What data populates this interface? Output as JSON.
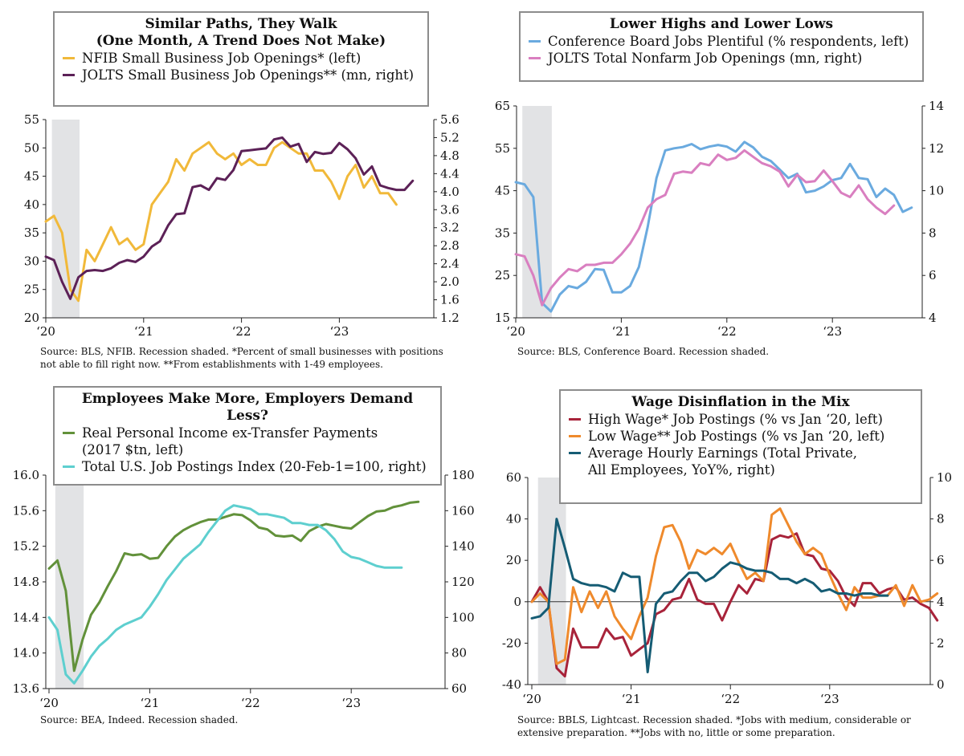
{
  "panels": [
    {
      "id": "p1",
      "title": "Similar Paths, They Walk\n(One Month, A Trend Does Not Make)",
      "legend": [
        {
          "label": "NFIB Small Business Job Openings* (left)",
          "color": "#f1b93a"
        },
        {
          "label": "JOLTS Small Business Job Openings** (mn, right)",
          "color": "#5c2157"
        }
      ],
      "source": "Source: BLS, NFIB. Recession shaded. *Percent of small businesses with positions\nnot able to fill right now. **From establishments with 1-49 employees.",
      "x_tick_labels": [
        "‘20",
        "‘21",
        "‘22",
        "‘23"
      ],
      "left_tick_labels": [
        "55",
        "50",
        "45",
        "40",
        "35",
        "30",
        "25",
        "20"
      ],
      "right_tick_labels": [
        "5.6",
        "5.2",
        "4.8",
        "4.4",
        "4.0",
        "3.6",
        "3.2",
        "2.8",
        "2.4",
        "2.0",
        "1.6",
        "1.2"
      ]
    },
    {
      "id": "p2",
      "title": "Lower Highs and Lower Lows",
      "legend": [
        {
          "label": "Conference Board Jobs Plentiful (% respondents, left)",
          "color": "#6aaadf"
        },
        {
          "label": "JOLTS Total Nonfarm Job Openings (mn, right)",
          "color": "#d97fc0"
        }
      ],
      "source": "Source: BLS, Conference Board. Recession shaded.",
      "x_tick_labels": [
        "‘20",
        "‘21",
        "‘22",
        "‘23"
      ],
      "left_tick_labels": [
        "65",
        "55",
        "45",
        "35",
        "25",
        "15"
      ],
      "right_tick_labels": [
        "14",
        "12",
        "10",
        "8",
        "6",
        "4"
      ]
    },
    {
      "id": "p3",
      "title": "Employees Make More, Employers Demand Less?",
      "legend": [
        {
          "label": "Real Personal Income ex-Transfer Payments\n(2017 $tn, left)",
          "color": "#62913a"
        },
        {
          "label": "Total U.S. Job Postings Index (20-Feb-1=100, right)",
          "color": "#5ecfcf"
        }
      ],
      "source": "Source: BEA, Indeed. Recession shaded.",
      "x_tick_labels": [
        "‘20",
        "‘21",
        "‘22",
        "‘23"
      ],
      "left_tick_labels": [
        "16.0",
        "15.6",
        "15.2",
        "14.8",
        "14.4",
        "14.0",
        "13.6"
      ],
      "right_tick_labels": [
        "180",
        "160",
        "140",
        "120",
        "100",
        "80",
        "60"
      ]
    },
    {
      "id": "p4",
      "title": "Wage Disinflation in the Mix",
      "legend": [
        {
          "label": "High Wage* Job Postings (% vs Jan ‘20, left)",
          "color": "#a8233a"
        },
        {
          "label": "Low Wage** Job Postings (% vs Jan ‘20, left)",
          "color": "#ef8a2c"
        },
        {
          "label": "Average Hourly Earnings (Total Private,\nAll Employees, YoY%, right)",
          "color": "#155c74"
        }
      ],
      "source": "Source: BBLS, Lightcast. Recession shaded. *Jobs with medium, considerable or\nextensive preparation. **Jobs with no, little or some preparation.",
      "x_tick_labels": [
        "‘20",
        "‘21",
        "‘22",
        "‘23"
      ],
      "left_tick_labels": [
        "60",
        "40",
        "20",
        "0",
        "-20",
        "-40"
      ],
      "right_tick_labels": [
        "10",
        "8",
        "6",
        "4",
        "2",
        "0"
      ]
    }
  ],
  "chart_data": [
    {
      "type": "line",
      "title": "Similar Paths, They Walk (One Month, A Trend Does Not Make)",
      "x_start": "2020-01",
      "frequency": "monthly",
      "recession_shading": [
        "2020-02",
        "2020-04"
      ],
      "left_ylim": [
        20,
        55
      ],
      "right_ylim": [
        1.2,
        5.6
      ],
      "series": [
        {
          "name": "NFIB Small Business Job Openings* (left)",
          "axis": "left",
          "color": "#f1b93a",
          "values": [
            37,
            38,
            35,
            25,
            23,
            32,
            30,
            33,
            36,
            33,
            34,
            32,
            33,
            40,
            42,
            44,
            48,
            46,
            49,
            50,
            51,
            49,
            48,
            49,
            47,
            48,
            47,
            47,
            50,
            51,
            50,
            49,
            49,
            46,
            46,
            44,
            41,
            45,
            47,
            43,
            45,
            42,
            42,
            40
          ]
        },
        {
          "name": "JOLTS Small Business Job Openings** (mn, right)",
          "axis": "right",
          "color": "#5c2157",
          "values": [
            2.56,
            2.48,
            2.0,
            1.62,
            2.1,
            2.24,
            2.26,
            2.24,
            2.3,
            2.42,
            2.48,
            2.44,
            2.56,
            2.78,
            2.9,
            3.25,
            3.5,
            3.52,
            4.1,
            4.14,
            4.04,
            4.3,
            4.26,
            4.48,
            4.9,
            4.92,
            4.94,
            4.96,
            5.16,
            5.2,
            5.0,
            5.06,
            4.66,
            4.88,
            4.84,
            4.86,
            5.08,
            4.94,
            4.74,
            4.38,
            4.56,
            4.14,
            4.08,
            4.04,
            4.04,
            4.24
          ]
        }
      ]
    },
    {
      "type": "line",
      "title": "Lower Highs and Lower Lows",
      "x_start": "2020-01",
      "frequency": "monthly",
      "recession_shading": [
        "2020-02",
        "2020-04"
      ],
      "left_ylim": [
        15,
        65
      ],
      "right_ylim": [
        4,
        14
      ],
      "series": [
        {
          "name": "Conference Board Jobs Plentiful (% respondents, left)",
          "axis": "left",
          "color": "#6aaadf",
          "values": [
            47,
            46.5,
            43.5,
            18.5,
            16.5,
            20.5,
            22.5,
            22,
            23.5,
            26.5,
            26.3,
            21,
            21,
            22.5,
            27,
            36.5,
            48,
            54.5,
            55,
            55.3,
            56,
            54.8,
            55.4,
            55.8,
            55.4,
            54.2,
            56.5,
            55.2,
            53,
            52,
            50,
            48,
            49,
            44.6,
            45,
            46,
            47.5,
            48,
            51.3,
            48,
            47.7,
            43.5,
            45.5,
            44,
            40,
            41
          ]
        },
        {
          "name": "JOLTS Total Nonfarm Job Openings (mn, right)",
          "axis": "right",
          "color": "#d97fc0",
          "values": [
            7.0,
            6.9,
            6.0,
            4.6,
            5.4,
            5.9,
            6.3,
            6.2,
            6.5,
            6.5,
            6.6,
            6.6,
            7.0,
            7.5,
            8.2,
            9.2,
            9.6,
            9.8,
            10.8,
            10.9,
            10.85,
            11.3,
            11.2,
            11.7,
            11.45,
            11.55,
            11.9,
            11.6,
            11.3,
            11.15,
            10.9,
            10.2,
            10.75,
            10.4,
            10.45,
            10.95,
            10.45,
            9.9,
            9.7,
            10.25,
            9.6,
            9.2,
            8.9,
            9.3
          ]
        }
      ]
    },
    {
      "type": "line",
      "title": "Employees Make More, Employers Demand Less?",
      "x_start": "2020-01",
      "frequency": "monthly",
      "recession_shading": [
        "2020-02",
        "2020-04"
      ],
      "left_ylim": [
        13.6,
        16.0
      ],
      "right_ylim": [
        60,
        180
      ],
      "series": [
        {
          "name": "Real Personal Income ex-Transfer Payments (2017 $tn, left)",
          "axis": "left",
          "color": "#62913a",
          "values": [
            14.95,
            15.04,
            14.7,
            13.8,
            14.15,
            14.43,
            14.57,
            14.75,
            14.92,
            15.12,
            15.1,
            15.11,
            15.06,
            15.07,
            15.2,
            15.31,
            15.38,
            15.43,
            15.47,
            15.5,
            15.5,
            15.53,
            15.56,
            15.55,
            15.49,
            15.41,
            15.39,
            15.32,
            15.31,
            15.32,
            15.26,
            15.37,
            15.42,
            15.45,
            15.43,
            15.41,
            15.4,
            15.47,
            15.54,
            15.59,
            15.6,
            15.64,
            15.66,
            15.69,
            15.7
          ]
        },
        {
          "name": "Total U.S. Job Postings Index (20-Feb-1=100, right)",
          "axis": "right",
          "color": "#5ecfcf",
          "values": [
            100,
            93,
            68,
            63,
            70,
            78,
            84,
            88,
            93,
            96,
            98,
            100,
            106,
            113,
            121,
            127,
            133,
            137,
            141,
            148,
            154,
            160,
            163,
            162,
            161,
            158,
            158,
            157,
            156,
            153,
            153,
            152,
            152,
            149,
            144,
            137,
            134,
            133,
            131,
            129,
            128,
            128,
            128
          ]
        }
      ]
    },
    {
      "type": "line",
      "title": "Wage Disinflation in the Mix",
      "x_start": "2020-01",
      "frequency": "monthly",
      "recession_shading": [
        "2020-02",
        "2020-04"
      ],
      "left_ylim": [
        -40,
        60
      ],
      "right_ylim": [
        0,
        10
      ],
      "series": [
        {
          "name": "High Wage* Job Postings (% vs Jan ‘20, left)",
          "axis": "left",
          "color": "#a8233a",
          "values": [
            0,
            7,
            0,
            -32,
            -36,
            -13,
            -22,
            -22,
            -22,
            -13,
            -18,
            -17,
            -26,
            -23,
            -20,
            -6,
            -4,
            1,
            2,
            11,
            1,
            -1,
            -1,
            -9,
            0,
            8,
            4,
            11,
            10,
            30,
            32,
            31,
            33,
            23,
            22,
            16,
            15,
            10,
            2,
            -2,
            9,
            9,
            4,
            6,
            7,
            1,
            2,
            -1,
            -3,
            -9
          ]
        },
        {
          "name": "Low Wage** Job Postings (% vs Jan ‘20, left)",
          "axis": "left",
          "color": "#ef8a2c",
          "values": [
            0,
            4,
            0,
            -30,
            -28,
            7,
            -5,
            5,
            -3,
            5,
            -7,
            -13,
            -18,
            -7,
            2,
            22,
            36,
            37,
            29,
            16,
            25,
            23,
            26,
            23,
            28,
            19,
            11,
            14,
            10,
            42,
            45,
            37,
            29,
            23,
            26,
            23,
            13,
            4,
            -4,
            7,
            2,
            2,
            3,
            3,
            8,
            -2,
            8,
            0,
            1,
            4
          ]
        },
        {
          "name": "Average Hourly Earnings (Total Private, All Employees, YoY%, right)",
          "axis": "right",
          "color": "#155c74",
          "values": [
            3.2,
            3.3,
            3.7,
            8.0,
            6.6,
            5.1,
            4.9,
            4.8,
            4.8,
            4.7,
            4.5,
            5.4,
            5.2,
            5.2,
            0.6,
            3.9,
            4.4,
            4.5,
            5.0,
            5.4,
            5.4,
            5.0,
            5.2,
            5.6,
            5.9,
            5.8,
            5.6,
            5.5,
            5.5,
            5.4,
            5.1,
            5.1,
            4.9,
            5.1,
            4.9,
            4.5,
            4.6,
            4.4,
            4.4,
            4.3,
            4.4,
            4.4,
            4.3,
            4.3
          ]
        }
      ]
    }
  ]
}
